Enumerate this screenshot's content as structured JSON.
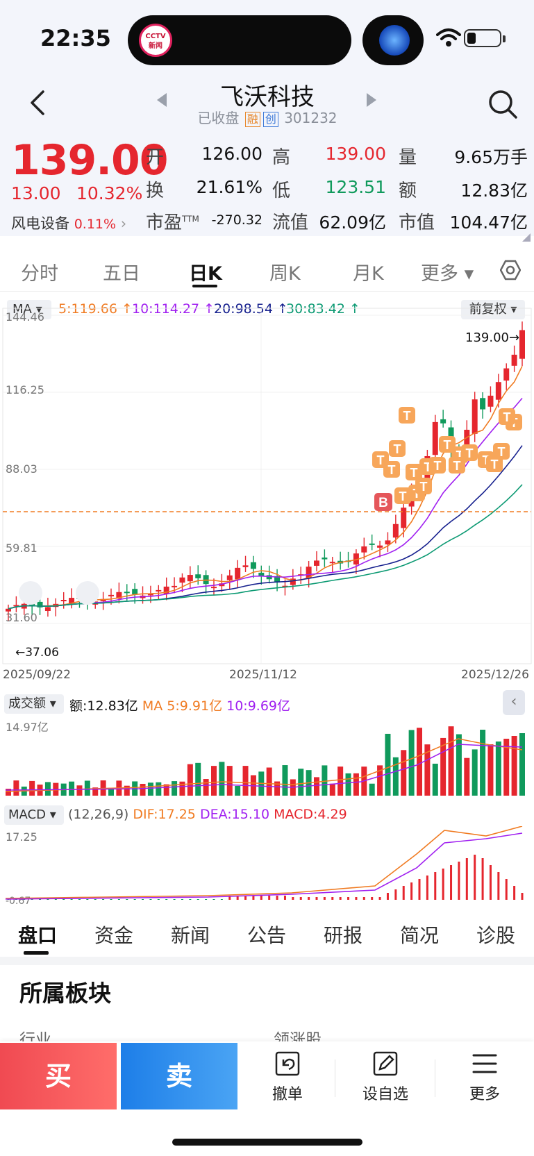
{
  "status_bar": {
    "time": "22:35",
    "island_logo_text": "新闻"
  },
  "header": {
    "name": "飞沃科技",
    "status": "已收盘",
    "tag_margin": "融",
    "tag_board": "创",
    "code": "301232"
  },
  "quote": {
    "price": "139.00",
    "change": "13.00",
    "change_pct": "10.32%",
    "sector_name": "风电设备",
    "sector_pct": "0.11%",
    "fields": [
      {
        "label": "开",
        "value": "126.00",
        "color": "#111111"
      },
      {
        "label": "高",
        "value": "139.00",
        "color": "#e5262e"
      },
      {
        "label": "量",
        "value": "9.65万手",
        "color": "#111111"
      },
      {
        "label": "换",
        "value": "21.61%",
        "color": "#111111"
      },
      {
        "label": "低",
        "value": "123.51",
        "color": "#109a5c"
      },
      {
        "label": "额",
        "value": "12.83亿",
        "color": "#111111"
      },
      {
        "label": "市盈TTM",
        "value": "-270.32",
        "color": "#111111"
      },
      {
        "label": "流值",
        "value": "62.09亿",
        "color": "#111111"
      },
      {
        "label": "市值",
        "value": "104.47亿",
        "color": "#111111"
      }
    ]
  },
  "chart_tabs": [
    {
      "label": "分时",
      "active": false
    },
    {
      "label": "五日",
      "active": false
    },
    {
      "label": "日K",
      "active": true
    },
    {
      "label": "周K",
      "active": false
    },
    {
      "label": "月K",
      "active": false
    },
    {
      "label": "更多 ▾",
      "active": false
    }
  ],
  "ma_row": {
    "select": "MA",
    "items": [
      {
        "text": "5:119.66 ↑",
        "color": "#f07b22"
      },
      {
        "text": "10:114.27 ↑",
        "color": "#a020f0"
      },
      {
        "text": "20:98.54 ↑",
        "color": "#16208e"
      },
      {
        "text": "30:83.42 ↑",
        "color": "#0c9a73"
      }
    ],
    "adjust": "前复权 ▾"
  },
  "kline": {
    "y_ticks": [
      "144.46",
      "116.25",
      "88.03",
      "59.81",
      "31.60"
    ],
    "x_ticks": [
      "2025/09/22",
      "2025/11/12",
      "2025/12/26"
    ],
    "last_label": "139.00→",
    "low_label": "←37.06",
    "marker_b": "B",
    "marker_t": "T"
  },
  "volume": {
    "select": "成交额",
    "amount": "额:12.83亿",
    "ma5": "MA 5:9.91亿",
    "ma10": "10:9.69亿",
    "y_top": "14.97亿"
  },
  "macd": {
    "select": "MACD",
    "params": "(12,26,9)",
    "dif": "DIF:17.25",
    "dea": "DEA:15.10",
    "macd": "MACD:4.29",
    "y_top": "17.25",
    "y_bottom": "-0.67"
  },
  "bottom_tabs": [
    {
      "label": "盘口",
      "active": true
    },
    {
      "label": "资金",
      "active": false
    },
    {
      "label": "新闻",
      "active": false
    },
    {
      "label": "公告",
      "active": false
    },
    {
      "label": "研报",
      "active": false
    },
    {
      "label": "简况",
      "active": false
    },
    {
      "label": "诊股",
      "active": false
    }
  ],
  "section": {
    "title": "所属板块",
    "col_industry": "行业",
    "col_lead": "领涨股"
  },
  "actions": {
    "buy": "买",
    "sell": "卖",
    "cancel": "撤单",
    "watch": "设自选",
    "more": "更多"
  },
  "colors": {
    "up": "#e5262e",
    "down": "#109a5c",
    "ma5": "#f07b22",
    "ma10": "#a020f0",
    "ma20": "#16208e",
    "ma30": "#0c9a73"
  }
}
